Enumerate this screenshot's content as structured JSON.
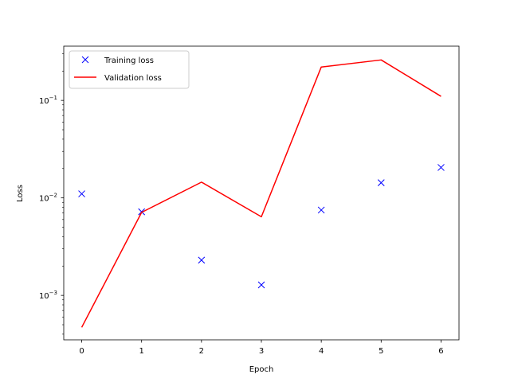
{
  "chart_data": {
    "type": "line",
    "xlabel": "Epoch",
    "ylabel": "Loss",
    "y_scale": "log",
    "xlim": [
      -0.3,
      6.3
    ],
    "ylim": [
      0.00035,
      0.36
    ],
    "x_ticks": [
      "0",
      "1",
      "2",
      "3",
      "4",
      "5",
      "6"
    ],
    "y_ticks": [
      {
        "value": 0.001,
        "base": "10",
        "exp": "−3"
      },
      {
        "value": 0.01,
        "base": "10",
        "exp": "−2"
      },
      {
        "value": 0.1,
        "base": "10",
        "exp": "−1"
      }
    ],
    "grid": false,
    "legend_position": "top-left",
    "series": [
      {
        "name": "Training loss",
        "style": "markers",
        "marker": "x",
        "color": "#0000ff",
        "x": [
          0,
          1,
          2,
          3,
          4,
          5,
          6
        ],
        "y": [
          0.011,
          0.0072,
          0.0023,
          0.00128,
          0.0075,
          0.0143,
          0.0205
        ]
      },
      {
        "name": "Validation loss",
        "style": "line",
        "color": "#ff0000",
        "x": [
          0,
          1,
          2,
          3,
          4,
          5,
          6
        ],
        "y": [
          0.00047,
          0.0071,
          0.0145,
          0.0064,
          0.22,
          0.26,
          0.11
        ]
      }
    ]
  }
}
